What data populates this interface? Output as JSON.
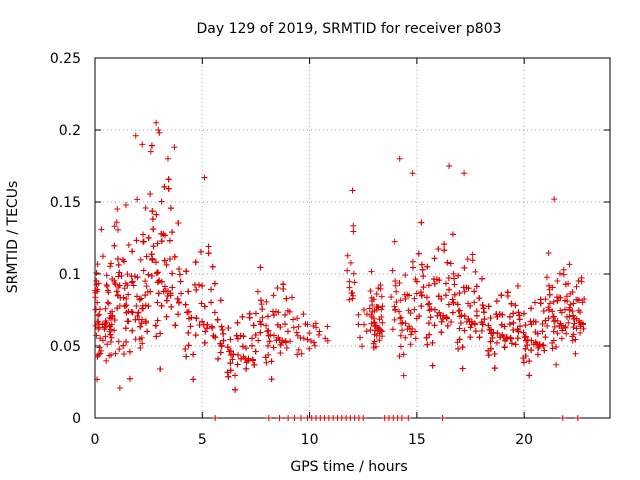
{
  "chart_data": {
    "type": "scatter",
    "title": "Day 129 of 2019, SRMTID for receiver p803",
    "xlabel": "GPS time / hours",
    "ylabel": "SRMTID / TECUs",
    "xlim": [
      0,
      24
    ],
    "ylim": [
      0,
      0.25
    ],
    "xticks": [
      0,
      5,
      10,
      15,
      20
    ],
    "xtick_labels": [
      "0",
      "5",
      "10",
      "15",
      "20"
    ],
    "yticks": [
      0,
      0.05,
      0.1,
      0.15,
      0.2,
      0.25
    ],
    "ytick_labels": [
      "0",
      "0.05",
      "0.1",
      "0.15",
      "0.2",
      "0.25"
    ],
    "grid": true,
    "marker": "+",
    "series": [
      {
        "name": "SRMTID",
        "color": "#e00000",
        "clusters": [
          {
            "t_start": 0.0,
            "t_end": 0.8,
            "center": 0.068,
            "spread": 0.028,
            "count": 70
          },
          {
            "t_start": 0.8,
            "t_end": 2.5,
            "center": 0.085,
            "spread": 0.038,
            "count": 150
          },
          {
            "t_start": 2.5,
            "t_end": 3.6,
            "center": 0.11,
            "spread": 0.05,
            "count": 140
          },
          {
            "t_start": 3.6,
            "t_end": 5.6,
            "center": 0.08,
            "spread": 0.035,
            "count": 130
          },
          {
            "t_start": 5.6,
            "t_end": 7.5,
            "center": 0.05,
            "spread": 0.02,
            "count": 150
          },
          {
            "t_start": 7.5,
            "t_end": 9.0,
            "center": 0.065,
            "spread": 0.025,
            "count": 90
          },
          {
            "t_start": 9.0,
            "t_end": 10.3,
            "center": 0.06,
            "spread": 0.015,
            "count": 25
          },
          {
            "t_start": 10.3,
            "t_end": 11.3,
            "center": 0.06,
            "spread": 0.01,
            "count": 6
          },
          {
            "t_start": 11.7,
            "t_end": 12.1,
            "center": 0.1,
            "spread": 0.03,
            "count": 14
          },
          {
            "t_start": 12.2,
            "t_end": 12.7,
            "center": 0.065,
            "spread": 0.01,
            "count": 8
          },
          {
            "t_start": 12.8,
            "t_end": 13.4,
            "center": 0.07,
            "spread": 0.02,
            "count": 50
          },
          {
            "t_start": 13.8,
            "t_end": 15.0,
            "center": 0.075,
            "spread": 0.03,
            "count": 50
          },
          {
            "t_start": 15.0,
            "t_end": 16.5,
            "center": 0.085,
            "spread": 0.032,
            "count": 110
          },
          {
            "t_start": 16.5,
            "t_end": 17.8,
            "center": 0.08,
            "spread": 0.03,
            "count": 90
          },
          {
            "t_start": 17.8,
            "t_end": 19.5,
            "center": 0.065,
            "spread": 0.02,
            "count": 150
          },
          {
            "t_start": 19.5,
            "t_end": 21.0,
            "center": 0.06,
            "spread": 0.02,
            "count": 120
          },
          {
            "t_start": 21.0,
            "t_end": 22.0,
            "center": 0.075,
            "spread": 0.025,
            "count": 60
          },
          {
            "t_start": 22.0,
            "t_end": 22.8,
            "center": 0.075,
            "spread": 0.02,
            "count": 45
          }
        ],
        "highlights": [
          {
            "t": 1.9,
            "value": 0.196
          },
          {
            "t": 2.2,
            "value": 0.19
          },
          {
            "t": 2.6,
            "value": 0.185
          },
          {
            "t": 2.85,
            "value": 0.205
          },
          {
            "t": 2.95,
            "value": 0.2
          },
          {
            "t": 3.0,
            "value": 0.198
          },
          {
            "t": 3.4,
            "value": 0.18
          },
          {
            "t": 3.7,
            "value": 0.188
          },
          {
            "t": 5.1,
            "value": 0.167
          },
          {
            "t": 12.0,
            "value": 0.158
          },
          {
            "t": 14.2,
            "value": 0.18
          },
          {
            "t": 14.8,
            "value": 0.17
          },
          {
            "t": 16.5,
            "value": 0.175
          },
          {
            "t": 17.2,
            "value": 0.17
          },
          {
            "t": 21.4,
            "value": 0.152
          }
        ],
        "zero_points_hours": [
          5.6,
          8.1,
          8.6,
          9.0,
          9.3,
          9.6,
          9.9,
          10.1,
          10.3,
          10.5,
          10.7,
          10.9,
          11.1,
          11.3,
          11.5,
          11.7,
          11.9,
          12.1,
          12.3,
          12.5,
          13.5,
          13.7,
          13.9,
          14.1,
          14.3,
          14.6,
          16.2,
          21.8,
          22.5
        ]
      }
    ]
  }
}
